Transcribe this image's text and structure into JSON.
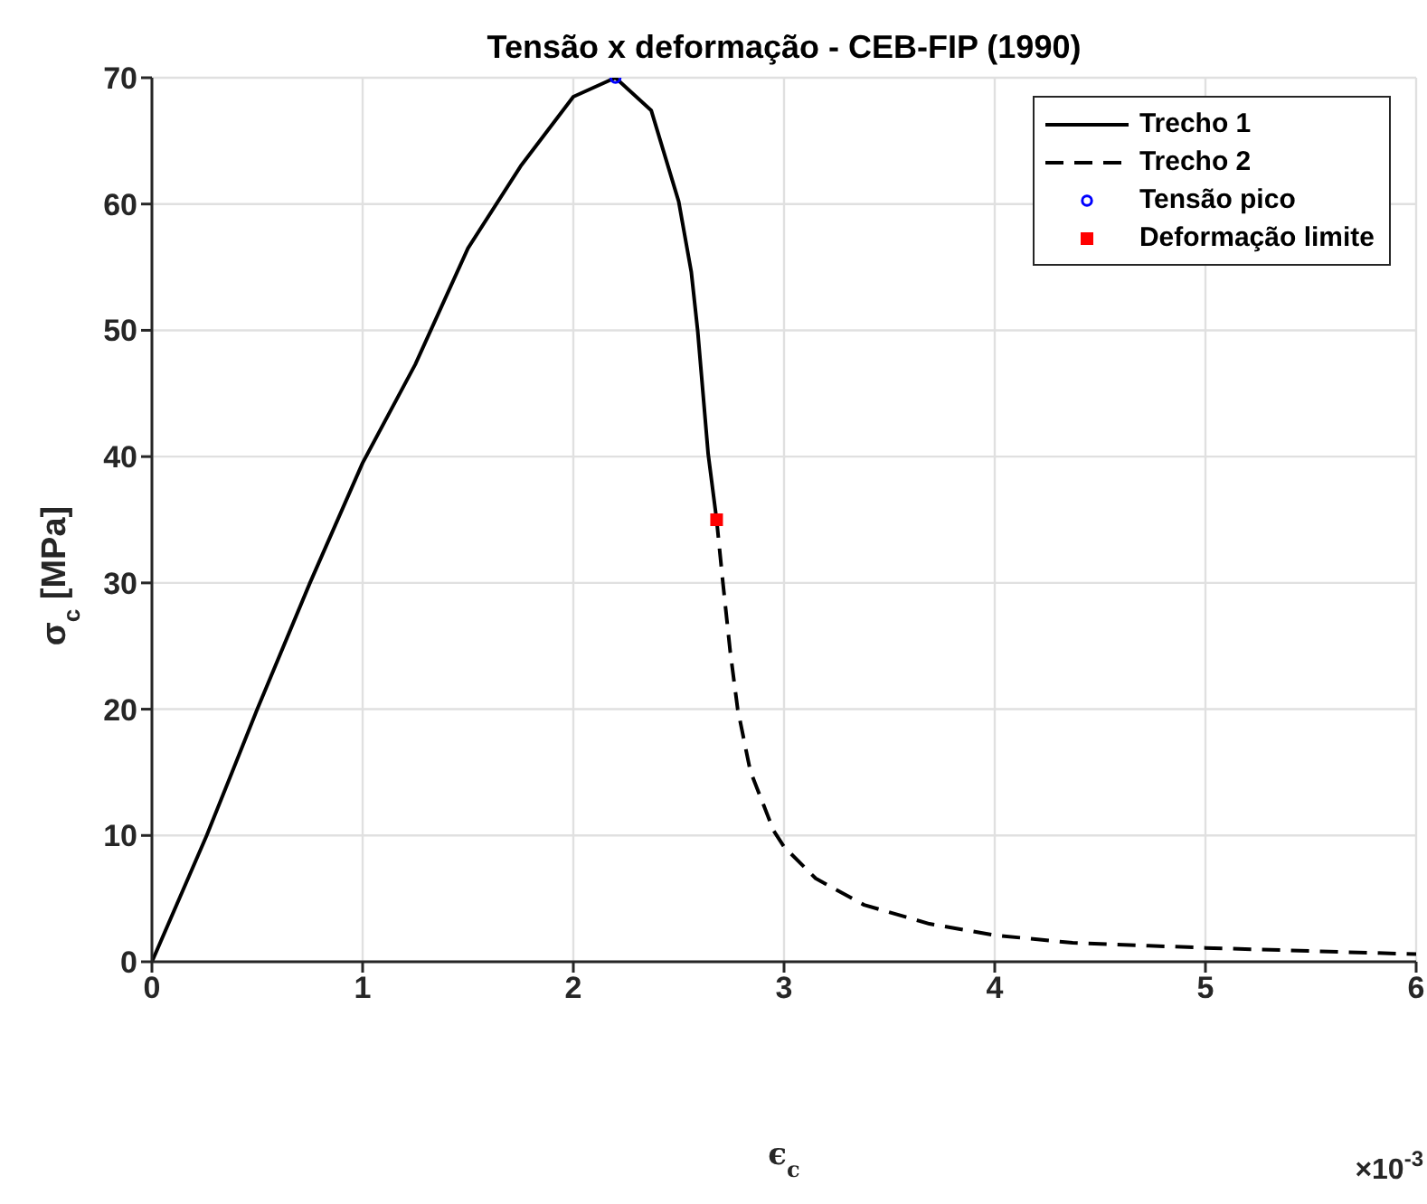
{
  "chart_data": {
    "type": "line",
    "title": "Tensão x deformação - CEB-FIP (1990)",
    "xlabel": "ϵ$_{c}$",
    "ylabel": "σ$_{c}$ [MPa]",
    "annotations": [
      "×10$^{-3}$"
    ],
    "xlim": [
      0,
      6
    ],
    "xticks": [
      0,
      1,
      2,
      3,
      4,
      5,
      6
    ],
    "ylim": [
      0,
      70
    ],
    "yticks": [
      0,
      10,
      20,
      30,
      40,
      50,
      60,
      70
    ],
    "grid": true,
    "legend": "top right",
    "series": [
      {
        "name": "Trecho 1",
        "color": "#000000",
        "line_style": "solid",
        "x": [
          0,
          0.26,
          0.5,
          0.75,
          1,
          1.25,
          1.5,
          1.75,
          2,
          2.2,
          2.37,
          2.5,
          2.56,
          2.59,
          2.64,
          2.68
        ],
        "values": [
          0,
          10,
          20,
          30,
          39.5,
          47.3,
          56.5,
          63,
          68.5,
          70,
          67.4,
          60.2,
          54.6,
          50,
          40.2,
          35
        ]
      },
      {
        "name": "Trecho 2",
        "color": "#000000",
        "line_style": "dashed",
        "x": [
          2.68,
          2.71,
          2.745,
          2.78,
          2.84,
          2.95,
          3,
          3.15,
          3.38,
          3.69,
          4,
          4.37,
          5,
          6
        ],
        "values": [
          35,
          30,
          24.5,
          20,
          15.1,
          10.4,
          9.1,
          6.6,
          4.5,
          3,
          2.1,
          1.5,
          1.1,
          0.6
        ]
      },
      {
        "name": "Tensão pico",
        "type": "scatter",
        "color": "#0000ff",
        "marker": "circle",
        "x": [
          2.2
        ],
        "values": [
          70
        ]
      },
      {
        "name": "Deformação limite",
        "type": "scatter",
        "color": "#ff0000",
        "marker": "square",
        "x": [
          2.68
        ],
        "values": [
          35
        ]
      }
    ]
  }
}
